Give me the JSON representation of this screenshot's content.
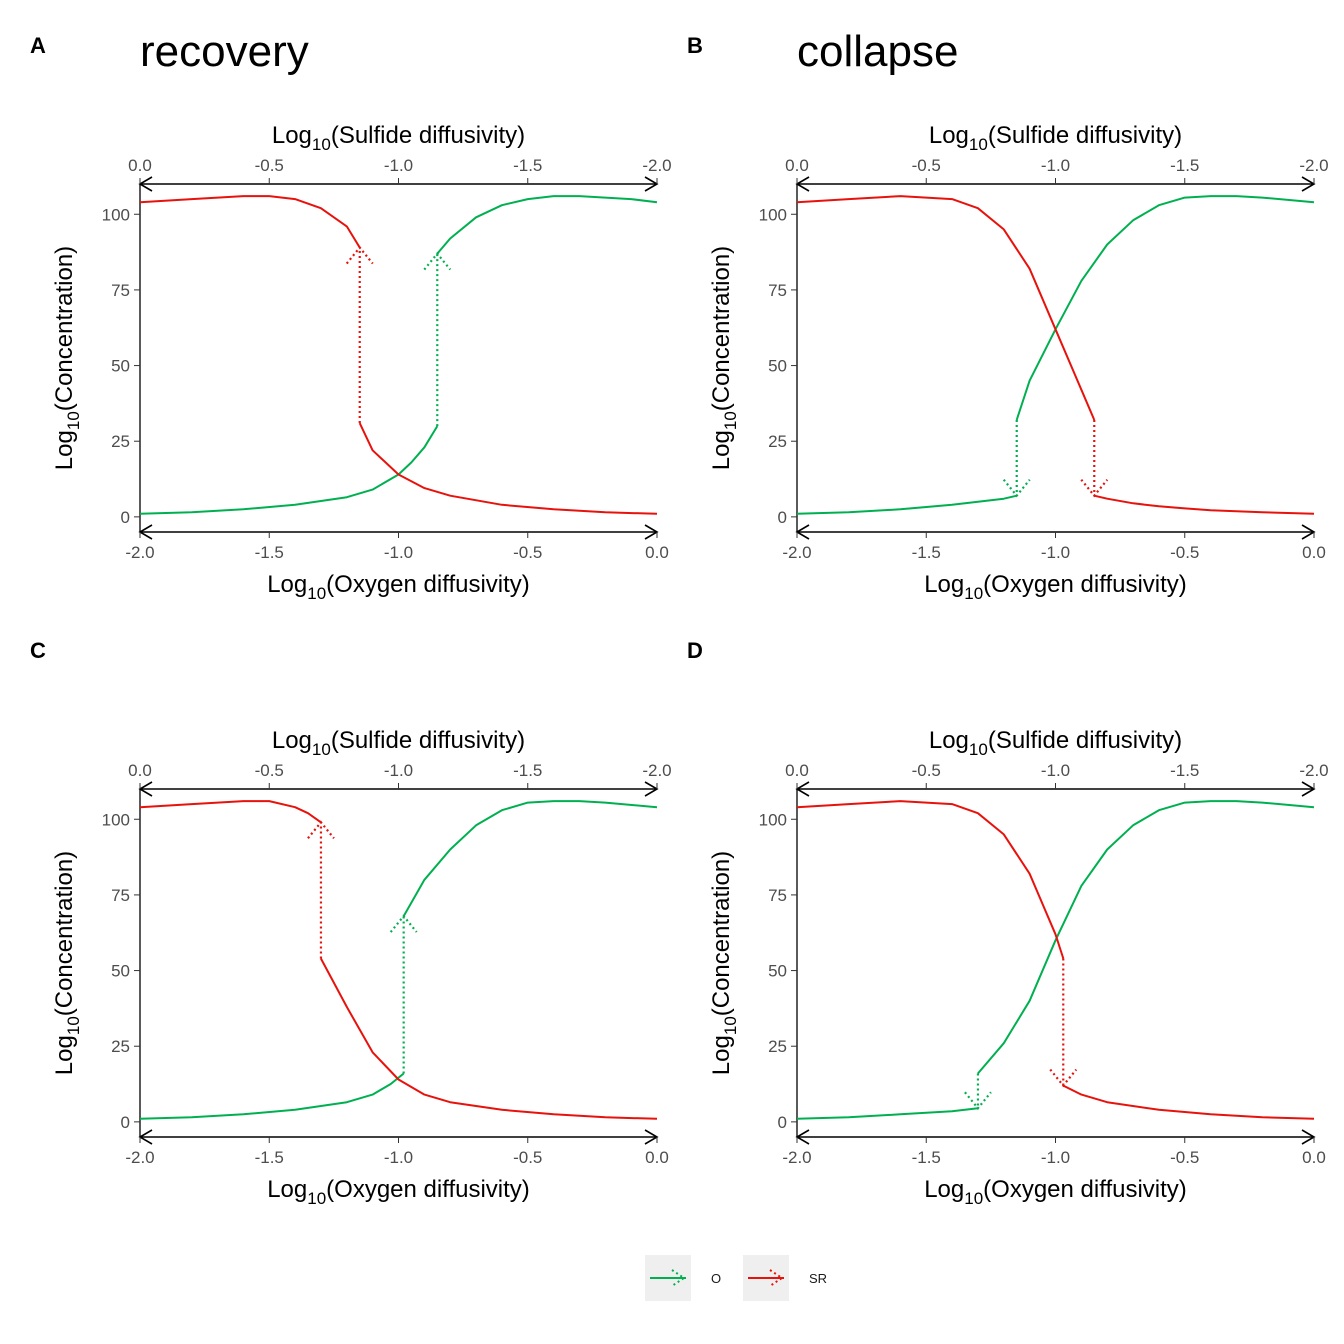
{
  "figure": {
    "panel_letters": [
      "A",
      "B",
      "C",
      "D"
    ],
    "panel_titles": [
      "recovery",
      "collapse",
      "",
      ""
    ]
  },
  "legend": {
    "position": "bottom-center",
    "items": [
      {
        "label": "O",
        "color": "#00b050"
      },
      {
        "label": "SR",
        "color": "#e8120c"
      }
    ]
  },
  "colors": {
    "O": "#00b050",
    "SR": "#e8120c"
  },
  "chart_data": [
    {
      "type": "line",
      "panel": "A",
      "title": "recovery",
      "xlabel_base": "Log",
      "xlabel_sub": "10",
      "xlabel_rest": "(Oxygen diffusivity)",
      "x2label_base": "Log",
      "x2label_sub": "10",
      "x2label_rest": "(Sulfide diffusivity)",
      "ylabel_base": "Log",
      "ylabel_sub": "10",
      "ylabel_rest": "(Concentration)",
      "xlim": [
        -2.0,
        0.0
      ],
      "x2lim": [
        0.0,
        -2.0
      ],
      "ylim": [
        -5,
        110
      ],
      "x_ticks": [
        -2.0,
        -1.5,
        -1.0,
        -0.5,
        0.0
      ],
      "x_tick_labels": [
        "-2.0",
        "-1.5",
        "-1.0",
        "-0.5",
        "0.0"
      ],
      "x2_ticks": [
        0.0,
        -0.5,
        -1.0,
        -1.5,
        -2.0
      ],
      "x2_tick_labels": [
        "0.0",
        "-0.5",
        "-1.0",
        "-1.5",
        "-2.0"
      ],
      "y_ticks": [
        0,
        25,
        50,
        75,
        100
      ],
      "y_tick_labels": [
        "0",
        "25",
        "50",
        "75",
        "100"
      ],
      "grid": false,
      "series": [
        {
          "name": "O",
          "style": "solid",
          "color": "#00b050",
          "x": [
            -2.0,
            -1.8,
            -1.6,
            -1.4,
            -1.2,
            -1.1,
            -1.0,
            -0.95,
            -0.9,
            -0.85
          ],
          "y": [
            1,
            1.5,
            2.5,
            4,
            6.5,
            9,
            14,
            18,
            23,
            30
          ]
        },
        {
          "name": "O",
          "style": "solid",
          "color": "#00b050",
          "x": [
            -0.85,
            -0.8,
            -0.7,
            -0.6,
            -0.5,
            -0.4,
            -0.3,
            -0.2,
            -0.1,
            0.0
          ],
          "y": [
            87,
            92,
            99,
            103,
            105,
            106,
            106,
            105.5,
            105,
            104
          ]
        },
        {
          "name": "O",
          "style": "dotted-arrow",
          "color": "#00b050",
          "x": [
            -0.85,
            -0.85
          ],
          "y": [
            30,
            87
          ]
        },
        {
          "name": "SR",
          "style": "solid",
          "color": "#e8120c",
          "x": [
            -2.0,
            -1.8,
            -1.6,
            -1.5,
            -1.4,
            -1.3,
            -1.2,
            -1.15
          ],
          "y": [
            104,
            105,
            106,
            106,
            105,
            102,
            96,
            89
          ]
        },
        {
          "name": "SR",
          "style": "solid",
          "color": "#e8120c",
          "x": [
            -1.15,
            -1.1,
            -1.0,
            -0.9,
            -0.8,
            -0.6,
            -0.4,
            -0.2,
            0.0
          ],
          "y": [
            31,
            22,
            14,
            9.5,
            7,
            4,
            2.5,
            1.5,
            1
          ]
        },
        {
          "name": "SR",
          "style": "dotted-arrow",
          "color": "#e8120c",
          "x": [
            -1.15,
            -1.15
          ],
          "y": [
            31,
            89
          ]
        }
      ]
    },
    {
      "type": "line",
      "panel": "B",
      "title": "collapse",
      "xlabel_base": "Log",
      "xlabel_sub": "10",
      "xlabel_rest": "(Oxygen diffusivity)",
      "x2label_base": "Log",
      "x2label_sub": "10",
      "x2label_rest": "(Sulfide diffusivity)",
      "ylabel_base": "Log",
      "ylabel_sub": "10",
      "ylabel_rest": "(Concentration)",
      "xlim": [
        -2.0,
        0.0
      ],
      "x2lim": [
        0.0,
        -2.0
      ],
      "ylim": [
        -5,
        110
      ],
      "x_ticks": [
        -2.0,
        -1.5,
        -1.0,
        -0.5,
        0.0
      ],
      "x_tick_labels": [
        "-2.0",
        "-1.5",
        "-1.0",
        "-0.5",
        "0.0"
      ],
      "x2_ticks": [
        0.0,
        -0.5,
        -1.0,
        -1.5,
        -2.0
      ],
      "x2_tick_labels": [
        "0.0",
        "-0.5",
        "-1.0",
        "-1.5",
        "-2.0"
      ],
      "y_ticks": [
        0,
        25,
        50,
        75,
        100
      ],
      "y_tick_labels": [
        "0",
        "25",
        "50",
        "75",
        "100"
      ],
      "grid": false,
      "series": [
        {
          "name": "O",
          "style": "solid",
          "color": "#00b050",
          "x": [
            -2.0,
            -1.8,
            -1.6,
            -1.4,
            -1.2,
            -1.15
          ],
          "y": [
            1,
            1.5,
            2.5,
            4,
            6,
            7
          ]
        },
        {
          "name": "O",
          "style": "solid",
          "color": "#00b050",
          "x": [
            -1.15,
            -1.1,
            -1.0,
            -0.9,
            -0.8,
            -0.7,
            -0.6,
            -0.5,
            -0.4,
            -0.3,
            -0.2,
            0.0
          ],
          "y": [
            32,
            45,
            62,
            78,
            90,
            98,
            103,
            105.5,
            106,
            106,
            105.5,
            104
          ]
        },
        {
          "name": "O",
          "style": "dotted-arrow",
          "color": "#00b050",
          "x": [
            -1.15,
            -1.15
          ],
          "y": [
            32,
            7
          ]
        },
        {
          "name": "SR",
          "style": "solid",
          "color": "#e8120c",
          "x": [
            -2.0,
            -1.8,
            -1.6,
            -1.4,
            -1.3,
            -1.2,
            -1.1,
            -1.0,
            -0.9,
            -0.85
          ],
          "y": [
            104,
            105,
            106,
            105,
            102,
            95,
            82,
            62,
            42,
            32
          ]
        },
        {
          "name": "SR",
          "style": "solid",
          "color": "#e8120c",
          "x": [
            -0.85,
            -0.8,
            -0.7,
            -0.6,
            -0.5,
            -0.4,
            -0.2,
            0.0
          ],
          "y": [
            7,
            6,
            4.5,
            3.5,
            2.8,
            2.2,
            1.5,
            1
          ]
        },
        {
          "name": "SR",
          "style": "dotted-arrow",
          "color": "#e8120c",
          "x": [
            -0.85,
            -0.85
          ],
          "y": [
            32,
            7
          ]
        }
      ]
    },
    {
      "type": "line",
      "panel": "C",
      "title": "",
      "xlabel_base": "Log",
      "xlabel_sub": "10",
      "xlabel_rest": "(Oxygen diffusivity)",
      "x2label_base": "Log",
      "x2label_sub": "10",
      "x2label_rest": "(Sulfide diffusivity)",
      "ylabel_base": "Log",
      "ylabel_sub": "10",
      "ylabel_rest": "(Concentration)",
      "xlim": [
        -2.0,
        0.0
      ],
      "x2lim": [
        0.0,
        -2.0
      ],
      "ylim": [
        -5,
        110
      ],
      "x_ticks": [
        -2.0,
        -1.5,
        -1.0,
        -0.5,
        0.0
      ],
      "x_tick_labels": [
        "-2.0",
        "-1.5",
        "-1.0",
        "-0.5",
        "0.0"
      ],
      "x2_ticks": [
        0.0,
        -0.5,
        -1.0,
        -1.5,
        -2.0
      ],
      "x2_tick_labels": [
        "0.0",
        "-0.5",
        "-1.0",
        "-1.5",
        "-2.0"
      ],
      "y_ticks": [
        0,
        25,
        50,
        75,
        100
      ],
      "y_tick_labels": [
        "0",
        "25",
        "50",
        "75",
        "100"
      ],
      "grid": false,
      "series": [
        {
          "name": "O",
          "style": "solid",
          "color": "#00b050",
          "x": [
            -2.0,
            -1.8,
            -1.6,
            -1.4,
            -1.2,
            -1.1,
            -1.03,
            -0.98
          ],
          "y": [
            1,
            1.5,
            2.5,
            4,
            6.5,
            9,
            12.5,
            16
          ]
        },
        {
          "name": "O",
          "style": "solid",
          "color": "#00b050",
          "x": [
            -0.98,
            -0.9,
            -0.8,
            -0.7,
            -0.6,
            -0.5,
            -0.4,
            -0.3,
            -0.2,
            0.0
          ],
          "y": [
            68,
            80,
            90,
            98,
            103,
            105.5,
            106,
            106,
            105.5,
            104
          ]
        },
        {
          "name": "O",
          "style": "dotted-arrow",
          "color": "#00b050",
          "x": [
            -0.98,
            -0.98
          ],
          "y": [
            16,
            68
          ]
        },
        {
          "name": "SR",
          "style": "solid",
          "color": "#e8120c",
          "x": [
            -2.0,
            -1.8,
            -1.6,
            -1.5,
            -1.4,
            -1.35,
            -1.3
          ],
          "y": [
            104,
            105,
            106,
            106,
            104,
            102,
            99
          ]
        },
        {
          "name": "SR",
          "style": "solid",
          "color": "#e8120c",
          "x": [
            -1.3,
            -1.2,
            -1.1,
            -1.0,
            -0.9,
            -0.8,
            -0.6,
            -0.4,
            -0.2,
            0.0
          ],
          "y": [
            54,
            38,
            23,
            14,
            9,
            6.5,
            4,
            2.5,
            1.5,
            1
          ]
        },
        {
          "name": "SR",
          "style": "dotted-arrow",
          "color": "#e8120c",
          "x": [
            -1.3,
            -1.3
          ],
          "y": [
            54,
            99
          ]
        }
      ]
    },
    {
      "type": "line",
      "panel": "D",
      "title": "",
      "xlabel_base": "Log",
      "xlabel_sub": "10",
      "xlabel_rest": "(Oxygen diffusivity)",
      "x2label_base": "Log",
      "x2label_sub": "10",
      "x2label_rest": "(Sulfide diffusivity)",
      "ylabel_base": "Log",
      "ylabel_sub": "10",
      "ylabel_rest": "(Concentration)",
      "xlim": [
        -2.0,
        0.0
      ],
      "x2lim": [
        0.0,
        -2.0
      ],
      "ylim": [
        -5,
        110
      ],
      "x_ticks": [
        -2.0,
        -1.5,
        -1.0,
        -0.5,
        0.0
      ],
      "x_tick_labels": [
        "-2.0",
        "-1.5",
        "-1.0",
        "-0.5",
        "0.0"
      ],
      "x2_ticks": [
        0.0,
        -0.5,
        -1.0,
        -1.5,
        -2.0
      ],
      "x2_tick_labels": [
        "0.0",
        "-0.5",
        "-1.0",
        "-1.5",
        "-2.0"
      ],
      "y_ticks": [
        0,
        25,
        50,
        75,
        100
      ],
      "y_tick_labels": [
        "0",
        "25",
        "50",
        "75",
        "100"
      ],
      "grid": false,
      "series": [
        {
          "name": "O",
          "style": "solid",
          "color": "#00b050",
          "x": [
            -2.0,
            -1.8,
            -1.6,
            -1.4,
            -1.3
          ],
          "y": [
            1,
            1.5,
            2.5,
            3.5,
            4.5
          ]
        },
        {
          "name": "O",
          "style": "solid",
          "color": "#00b050",
          "x": [
            -1.3,
            -1.2,
            -1.1,
            -1.0,
            -0.9,
            -0.8,
            -0.7,
            -0.6,
            -0.5,
            -0.4,
            -0.3,
            -0.2,
            0.0
          ],
          "y": [
            16,
            26,
            40,
            60,
            78,
            90,
            98,
            103,
            105.5,
            106,
            106,
            105.5,
            104
          ]
        },
        {
          "name": "O",
          "style": "dotted-arrow",
          "color": "#00b050",
          "x": [
            -1.3,
            -1.3
          ],
          "y": [
            16,
            4.5
          ]
        },
        {
          "name": "SR",
          "style": "solid",
          "color": "#e8120c",
          "x": [
            -2.0,
            -1.8,
            -1.6,
            -1.4,
            -1.3,
            -1.2,
            -1.1,
            -1.0,
            -0.97
          ],
          "y": [
            104,
            105,
            106,
            105,
            102,
            95,
            82,
            62,
            54
          ]
        },
        {
          "name": "SR",
          "style": "solid",
          "color": "#e8120c",
          "x": [
            -0.97,
            -0.9,
            -0.8,
            -0.6,
            -0.4,
            -0.2,
            0.0
          ],
          "y": [
            12,
            9,
            6.5,
            4,
            2.5,
            1.5,
            1
          ]
        },
        {
          "name": "SR",
          "style": "dotted-arrow",
          "color": "#e8120c",
          "x": [
            -0.97,
            -0.97
          ],
          "y": [
            54,
            12
          ]
        }
      ]
    }
  ]
}
